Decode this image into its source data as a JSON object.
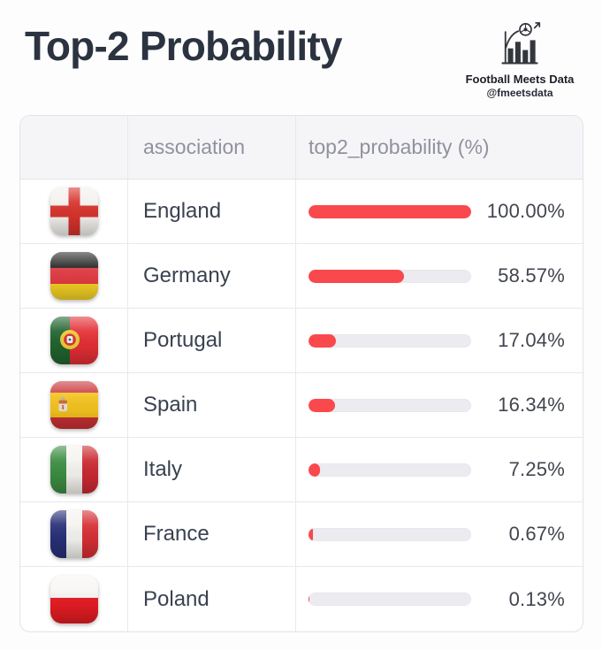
{
  "header": {
    "title": "Top-2 Probability",
    "brand": {
      "name": "Football Meets Data",
      "handle": "@fmeetsdata"
    }
  },
  "table": {
    "columns": [
      "",
      "association",
      "top2_probability (%)"
    ],
    "rows": [
      {
        "association": "England",
        "value": "100.00%",
        "pct": 100.0,
        "flag": "england"
      },
      {
        "association": "Germany",
        "value": "58.57%",
        "pct": 58.57,
        "flag": "germany"
      },
      {
        "association": "Portugal",
        "value": "17.04%",
        "pct": 17.04,
        "flag": "portugal"
      },
      {
        "association": "Spain",
        "value": "16.34%",
        "pct": 16.34,
        "flag": "spain"
      },
      {
        "association": "Italy",
        "value": "7.25%",
        "pct": 7.25,
        "flag": "italy"
      },
      {
        "association": "France",
        "value": "0.67%",
        "pct": 0.67,
        "flag": "france"
      },
      {
        "association": "Poland",
        "value": "0.13%",
        "pct": 0.13,
        "flag": "poland"
      }
    ]
  },
  "chart_data": {
    "type": "bar",
    "orientation": "horizontal",
    "title": "Top-2 Probability",
    "categories": [
      "England",
      "Germany",
      "Portugal",
      "Spain",
      "Italy",
      "France",
      "Poland"
    ],
    "values": [
      100.0,
      58.57,
      17.04,
      16.34,
      7.25,
      0.67,
      0.13
    ],
    "xlabel": "top2_probability (%)",
    "ylabel": "association",
    "xlim": [
      0,
      100
    ],
    "unit": "%",
    "legend": false,
    "grid": false
  },
  "colors": {
    "bar_fill": "#f9494d",
    "bar_track": "#ebebf0",
    "title_text": "#2c3340",
    "header_text": "#8f919d",
    "cell_text": "#3a4150",
    "value_text": "#42454f",
    "table_border": "#e3e3e9",
    "header_bg": "#f5f5f8"
  }
}
